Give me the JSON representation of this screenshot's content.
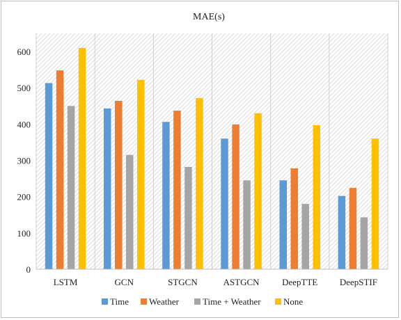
{
  "chart_data": {
    "type": "bar",
    "title": "MAE(s)",
    "xlabel": "",
    "ylabel": "",
    "ylim": [
      0,
      650
    ],
    "yticks": [
      0,
      100,
      200,
      300,
      400,
      500,
      600
    ],
    "grid": false,
    "background": "diagonal-hatch",
    "legend": "bottom",
    "categories": [
      "LSTM",
      "GCN",
      "STGCN",
      "ASTGCN",
      "DeepTTE",
      "DeepSTIF"
    ],
    "series": [
      {
        "name": "Time",
        "color": "#5b9bd5",
        "values": [
          513,
          443,
          406,
          360,
          245,
          202
        ]
      },
      {
        "name": "Weather",
        "color": "#ed7d31",
        "values": [
          548,
          464,
          437,
          399,
          278,
          224
        ]
      },
      {
        "name": "Time + Weather",
        "color": "#a5a5a5",
        "values": [
          450,
          315,
          282,
          245,
          180,
          143
        ]
      },
      {
        "name": "None",
        "color": "#ffc000",
        "values": [
          610,
          522,
          472,
          430,
          397,
          360
        ]
      }
    ]
  }
}
